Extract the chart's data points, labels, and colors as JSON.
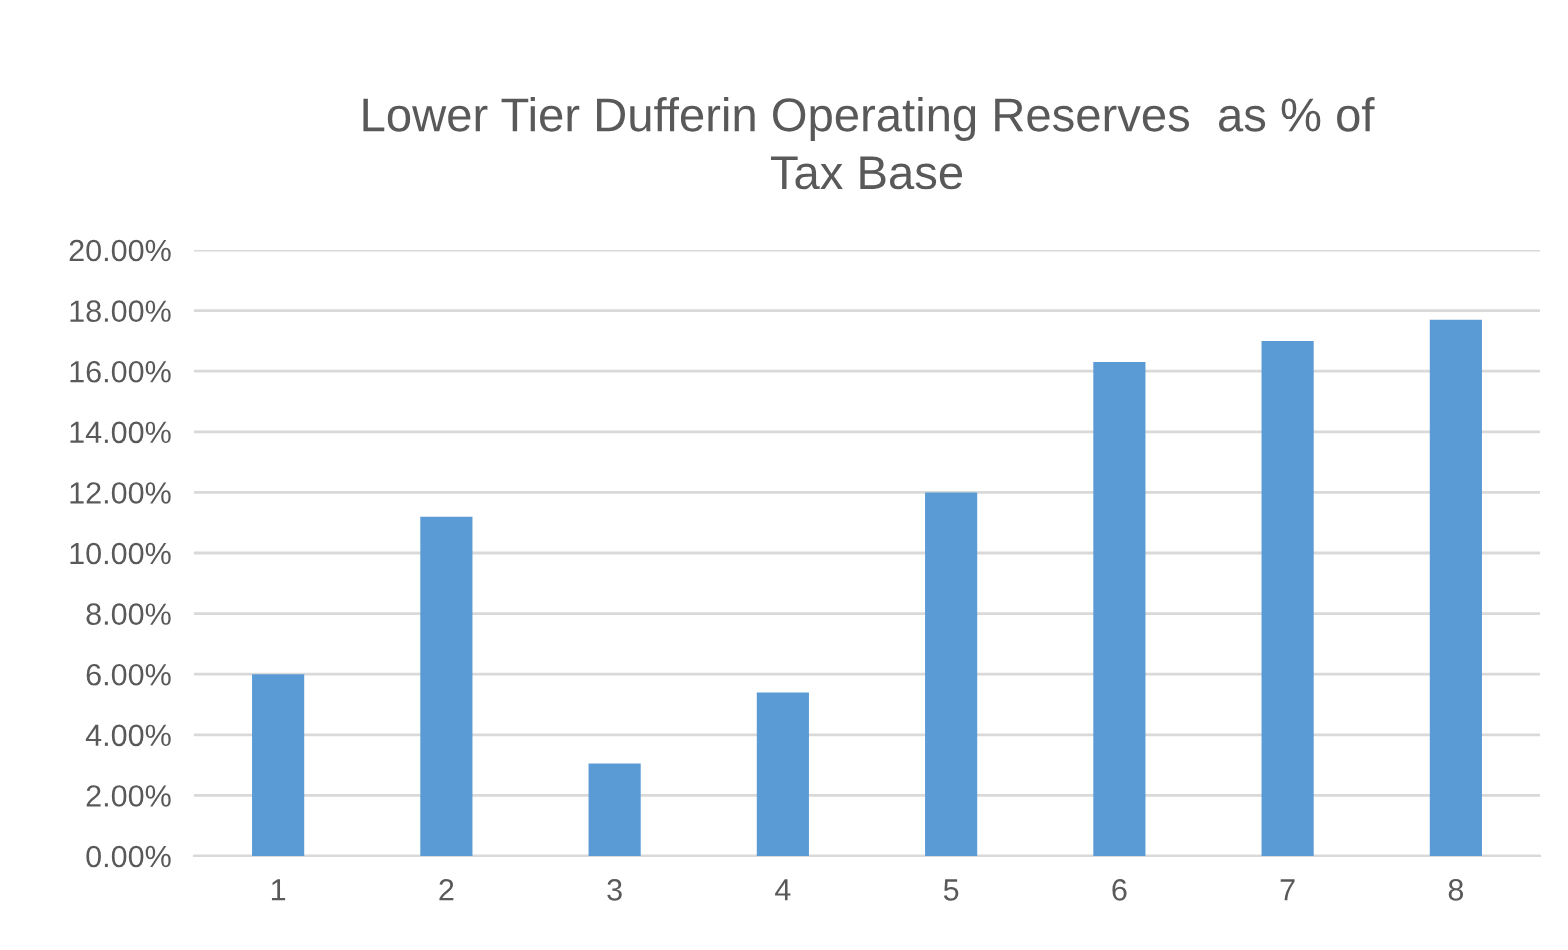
{
  "chart_data": {
    "type": "bar",
    "title": "Lower Tier Dufferin Operating Reserves  as % of\nTax Base",
    "categories": [
      "1",
      "2",
      "3",
      "4",
      "5",
      "6",
      "7",
      "8"
    ],
    "values": [
      6.0,
      11.2,
      3.05,
      5.4,
      12.0,
      16.3,
      17.0,
      17.7
    ],
    "color": "#5b9bd5",
    "ylim": [
      0,
      20
    ],
    "yticks": [
      {
        "value": 0,
        "label": "0.00%"
      },
      {
        "value": 2,
        "label": "2.00%"
      },
      {
        "value": 4,
        "label": "4.00%"
      },
      {
        "value": 6,
        "label": "6.00%"
      },
      {
        "value": 8,
        "label": "8.00%"
      },
      {
        "value": 10,
        "label": "10.00%"
      },
      {
        "value": 12,
        "label": "12.00%"
      },
      {
        "value": 14,
        "label": "14.00%"
      },
      {
        "value": 16,
        "label": "16.00%"
      },
      {
        "value": 18,
        "label": "18.00%"
      },
      {
        "value": 20,
        "label": "20.00%"
      }
    ],
    "grid": "y"
  }
}
